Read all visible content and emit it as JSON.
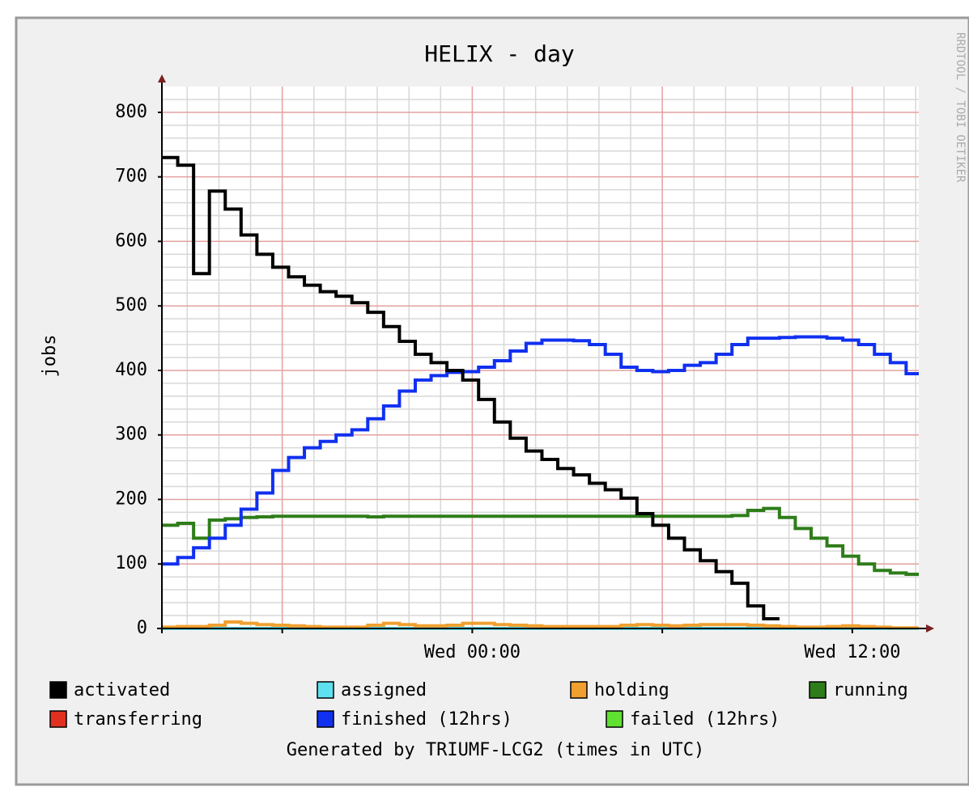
{
  "chart_data": {
    "type": "step-line",
    "title": "HELIX - day",
    "y_label": "jobs",
    "footer": "Generated by TRIUMF-LCG2 (times in UTC)",
    "watermark": "RRDTOOL / TOBI OETIKER",
    "xlim": [
      -9.8,
      14.1
    ],
    "xticks": [
      {
        "value": -6,
        "label": null
      },
      {
        "value": 0,
        "label": "Wed 00:00"
      },
      {
        "value": 6,
        "label": null
      },
      {
        "value": 12,
        "label": "Wed 12:00"
      }
    ],
    "x_minor_ticks": [
      -9,
      -8,
      -7,
      -5,
      -4,
      -3,
      -2,
      -1,
      1,
      2,
      3,
      4,
      5,
      7,
      8,
      9,
      10,
      11,
      13,
      14
    ],
    "ylim": [
      0,
      840
    ],
    "yticks": [
      0,
      100,
      200,
      300,
      400,
      500,
      600,
      700,
      800
    ],
    "y_minor_ticks": [
      20,
      40,
      60,
      80,
      120,
      140,
      160,
      180,
      220,
      240,
      260,
      280,
      320,
      340,
      360,
      380,
      420,
      440,
      460,
      480,
      520,
      540,
      560,
      580,
      620,
      640,
      660,
      680,
      720,
      740,
      760,
      780,
      820
    ],
    "grid": true,
    "x": [
      -9.8,
      -9.3,
      -8.8,
      -8.3,
      -7.8,
      -7.3,
      -6.8,
      -6.3,
      -5.8,
      -5.3,
      -4.8,
      -4.3,
      -3.8,
      -3.3,
      -2.8,
      -2.3,
      -1.8,
      -1.3,
      -0.8,
      -0.3,
      0.2,
      0.7,
      1.2,
      1.7,
      2.2,
      2.7,
      3.2,
      3.7,
      4.2,
      4.7,
      5.2,
      5.7,
      6.2,
      6.7,
      7.2,
      7.7,
      8.2,
      8.7,
      9.2,
      9.7,
      10.2,
      10.7,
      11.2,
      11.7,
      12.2,
      12.7,
      13.2,
      13.7
    ],
    "series": [
      {
        "name": "activated",
        "color": "#000000",
        "values": [
          730,
          718,
          550,
          678,
          650,
          610,
          580,
          560,
          545,
          532,
          522,
          515,
          505,
          490,
          468,
          445,
          425,
          412,
          400,
          385,
          355,
          320,
          295,
          275,
          262,
          248,
          238,
          225,
          215,
          202,
          178,
          160,
          140,
          122,
          105,
          88,
          70,
          35,
          15,
          null,
          null,
          null,
          null,
          null,
          null,
          null,
          null,
          null
        ]
      },
      {
        "name": "assigned",
        "color": "#5ee0ee",
        "values": [
          0,
          0,
          0,
          0,
          0,
          0,
          0,
          0,
          0,
          0,
          0,
          0,
          0,
          0,
          0,
          0,
          0,
          0,
          0,
          0,
          0,
          0,
          0,
          0,
          0,
          0,
          0,
          0,
          0,
          0,
          0,
          0,
          0,
          0,
          0,
          0,
          0,
          0,
          0,
          0,
          0,
          0,
          0,
          0,
          0,
          0,
          0,
          0
        ]
      },
      {
        "name": "holding",
        "color": "#f0a030",
        "values": [
          2,
          3,
          3,
          5,
          10,
          8,
          6,
          5,
          4,
          3,
          2,
          2,
          2,
          5,
          8,
          6,
          4,
          4,
          5,
          8,
          8,
          6,
          5,
          4,
          3,
          3,
          3,
          3,
          3,
          5,
          6,
          5,
          4,
          5,
          6,
          6,
          6,
          5,
          4,
          3,
          2,
          2,
          3,
          4,
          3,
          2,
          1,
          1
        ]
      },
      {
        "name": "running",
        "color": "#2e7d1a",
        "values": [
          160,
          163,
          140,
          168,
          170,
          172,
          173,
          174,
          174,
          174,
          174,
          174,
          174,
          173,
          174,
          174,
          174,
          174,
          174,
          174,
          174,
          174,
          174,
          174,
          174,
          174,
          174,
          174,
          174,
          174,
          174,
          174,
          174,
          174,
          174,
          174,
          175,
          183,
          186,
          172,
          155,
          140,
          128,
          112,
          100,
          90,
          86,
          84
        ]
      },
      {
        "name": "transferring",
        "color": "#e03020",
        "values": [
          0,
          0,
          0,
          0,
          0,
          0,
          0,
          0,
          0,
          0,
          0,
          0,
          0,
          0,
          0,
          0,
          0,
          0,
          0,
          0,
          0,
          0,
          0,
          0,
          0,
          0,
          0,
          0,
          0,
          0,
          0,
          0,
          0,
          0,
          0,
          0,
          0,
          0,
          0,
          0,
          0,
          0,
          0,
          0,
          0,
          0,
          0,
          0
        ]
      },
      {
        "name": "finished (12hrs)",
        "color": "#1030f0",
        "values": [
          100,
          110,
          125,
          140,
          160,
          185,
          210,
          245,
          265,
          280,
          290,
          300,
          308,
          325,
          345,
          368,
          385,
          392,
          397,
          398,
          405,
          415,
          430,
          442,
          447,
          447,
          446,
          440,
          425,
          405,
          400,
          398,
          400,
          408,
          412,
          425,
          440,
          450,
          450,
          451,
          452,
          452,
          450,
          447,
          440,
          425,
          412,
          395
        ]
      },
      {
        "name": "failed (12hrs)",
        "color": "#60e030",
        "values": [
          0,
          0,
          0,
          0,
          0,
          0,
          0,
          0,
          0,
          0,
          0,
          0,
          0,
          0,
          0,
          0,
          0,
          0,
          0,
          0,
          0,
          0,
          0,
          0,
          0,
          0,
          0,
          0,
          0,
          0,
          0,
          0,
          0,
          0,
          0,
          0,
          0,
          0,
          0,
          0,
          0,
          0,
          0,
          0,
          0,
          0,
          0,
          0
        ]
      }
    ]
  }
}
